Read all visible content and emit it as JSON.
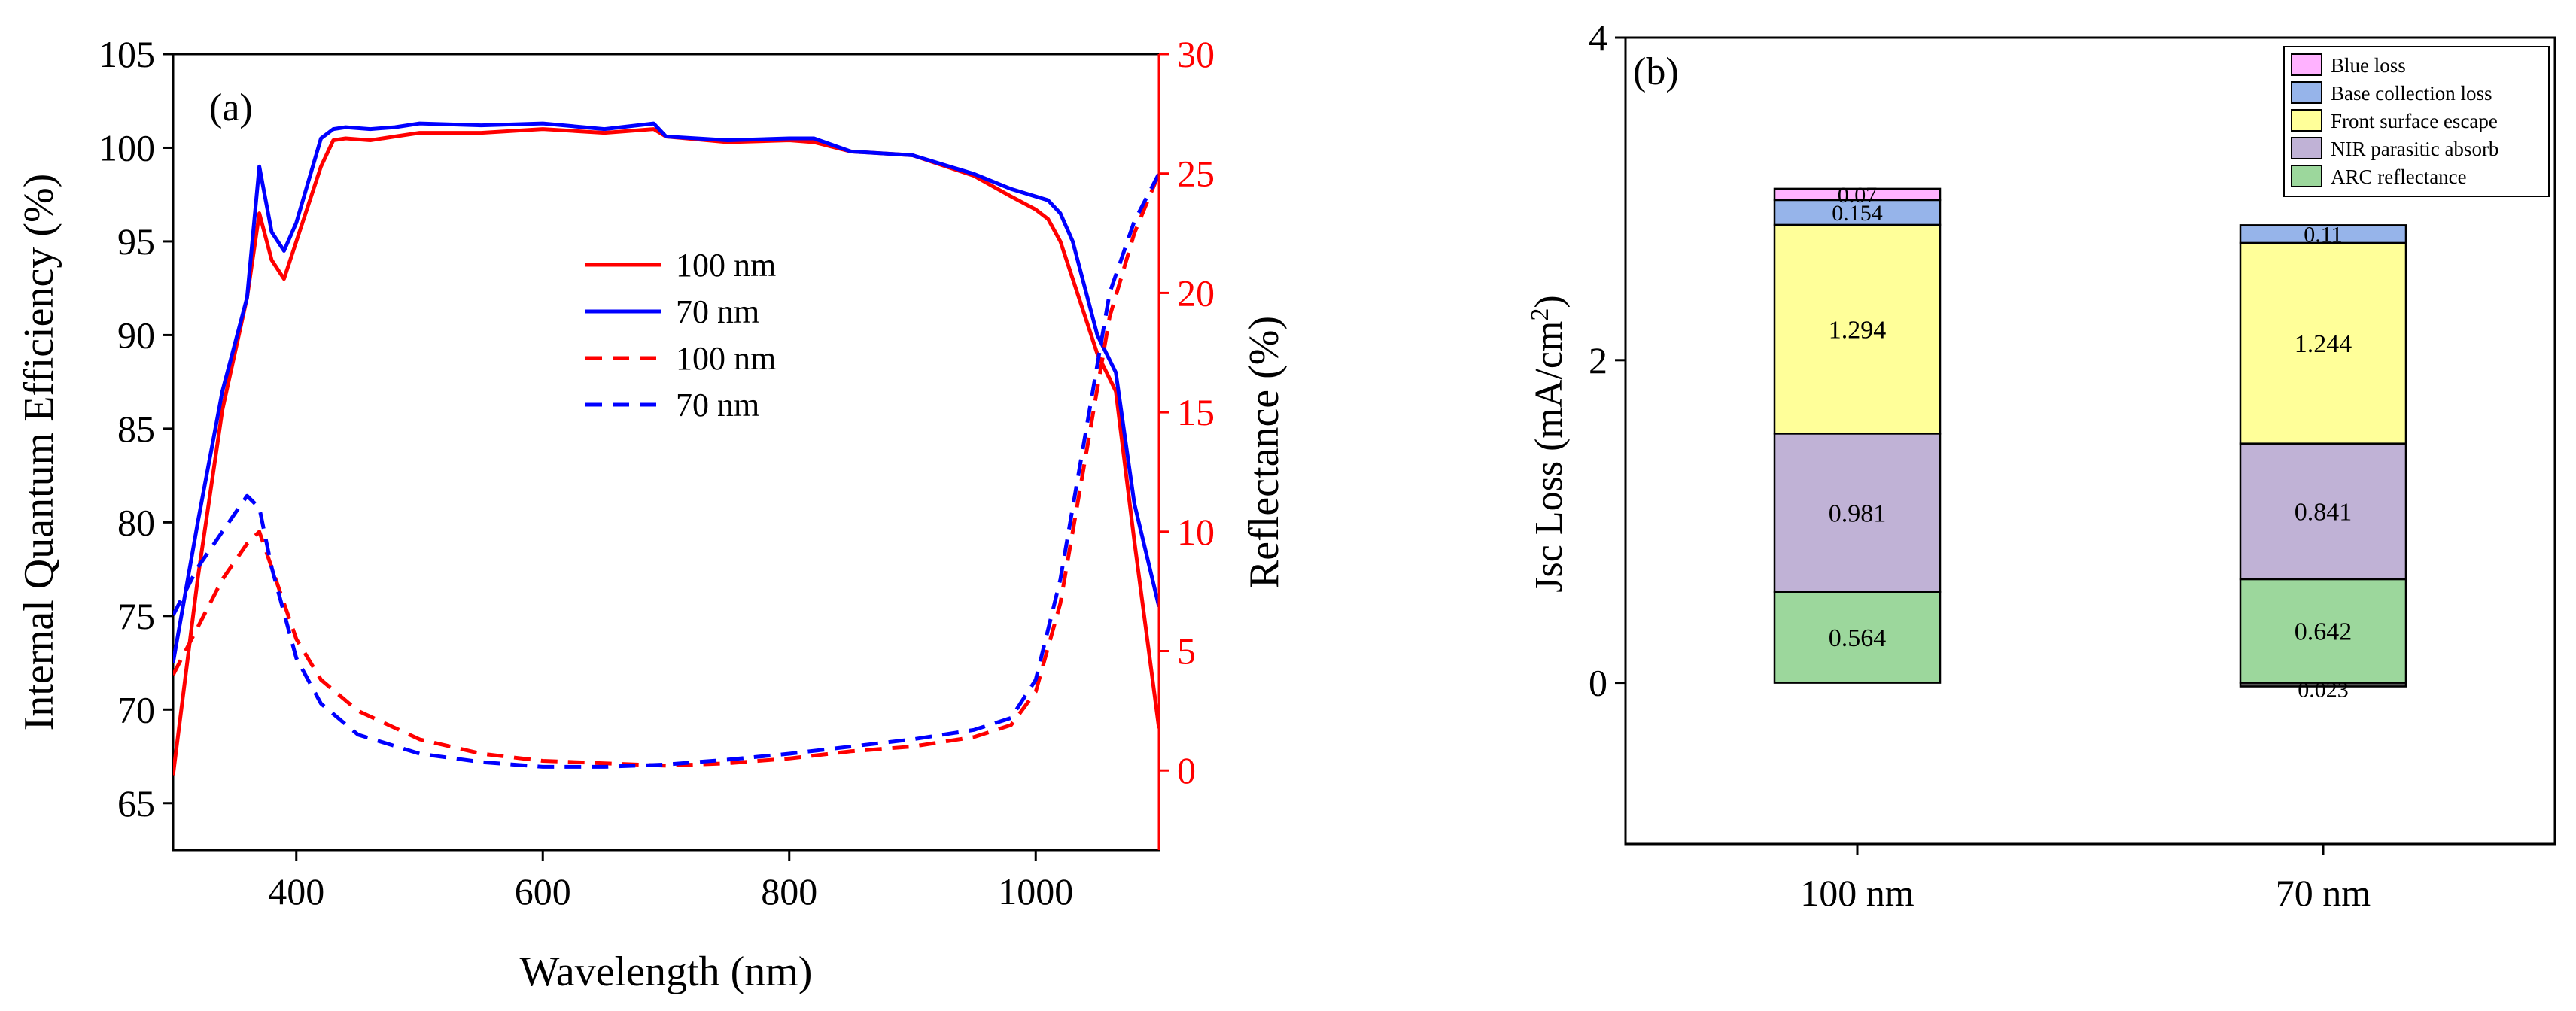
{
  "chart_data": [
    {
      "type": "line",
      "panel_label": "(a)",
      "xlabel": "Wavelength (nm)",
      "ylabel_left": "Internal Quantum Efficiency (%)",
      "ylabel_right": "Reflectance (%)",
      "xlim": [
        300,
        1100
      ],
      "ylim_left": [
        62.5,
        105
      ],
      "ylim_right": [
        -3.333,
        30
      ],
      "xticks": [
        400,
        600,
        800,
        1000
      ],
      "yticks_left": [
        65,
        70,
        75,
        80,
        85,
        90,
        95,
        100,
        105
      ],
      "yticks_right": [
        0,
        5,
        10,
        15,
        20,
        25,
        30
      ],
      "right_axis_color": "#ff0000",
      "legend_position": "center",
      "series": [
        {
          "name": "100 nm",
          "axis": "left",
          "color": "#ff0000",
          "dash": "solid",
          "x": [
            300,
            320,
            340,
            360,
            370,
            380,
            390,
            400,
            420,
            430,
            440,
            460,
            480,
            500,
            550,
            600,
            650,
            690,
            700,
            750,
            800,
            820,
            850,
            900,
            950,
            980,
            1000,
            1010,
            1020,
            1030,
            1050,
            1065,
            1080,
            1100
          ],
          "y": [
            66.5,
            77,
            86,
            92,
            96.5,
            94,
            93,
            95,
            99,
            100.4,
            100.5,
            100.4,
            100.6,
            100.8,
            100.8,
            101,
            100.8,
            101,
            100.6,
            100.3,
            100.4,
            100.3,
            99.8,
            99.6,
            98.5,
            97.4,
            96.7,
            96.2,
            95.0,
            93.0,
            89.0,
            87.0,
            79.0,
            69.0
          ]
        },
        {
          "name": "70 nm",
          "axis": "left",
          "color": "#0000ff",
          "dash": "solid",
          "x": [
            300,
            320,
            340,
            360,
            370,
            380,
            390,
            400,
            420,
            430,
            440,
            460,
            480,
            500,
            550,
            600,
            650,
            690,
            700,
            750,
            800,
            820,
            850,
            900,
            950,
            980,
            1000,
            1010,
            1020,
            1030,
            1050,
            1065,
            1080,
            1100
          ],
          "y": [
            72.5,
            80,
            87,
            92,
            99,
            95.5,
            94.5,
            96,
            100.5,
            101,
            101.1,
            101,
            101.1,
            101.3,
            101.2,
            101.3,
            101,
            101.3,
            100.6,
            100.4,
            100.5,
            100.5,
            99.8,
            99.6,
            98.6,
            97.8,
            97.4,
            97.2,
            96.5,
            95.0,
            90.0,
            88.0,
            81.0,
            75.5
          ]
        },
        {
          "name": "100 nm",
          "axis": "right",
          "color": "#ff0000",
          "dash": "dashed",
          "x": [
            300,
            320,
            340,
            360,
            370,
            380,
            400,
            420,
            450,
            500,
            550,
            600,
            650,
            700,
            750,
            800,
            850,
            900,
            950,
            980,
            1000,
            1020,
            1040,
            1060,
            1080,
            1100
          ],
          "y": [
            4.0,
            6.0,
            8.0,
            9.5,
            10.0,
            8.5,
            5.5,
            3.8,
            2.5,
            1.3,
            0.7,
            0.4,
            0.3,
            0.2,
            0.3,
            0.5,
            0.8,
            1.0,
            1.4,
            1.9,
            3.3,
            7.0,
            13.0,
            19.0,
            22.5,
            25.0
          ]
        },
        {
          "name": "70 nm",
          "axis": "right",
          "color": "#0000ff",
          "dash": "dashed",
          "x": [
            300,
            320,
            340,
            360,
            370,
            380,
            400,
            420,
            450,
            500,
            550,
            600,
            650,
            700,
            750,
            800,
            850,
            900,
            950,
            980,
            1000,
            1020,
            1040,
            1060,
            1080,
            1100
          ],
          "y": [
            6.5,
            8.5,
            10.0,
            11.5,
            11.0,
            8.5,
            4.7,
            2.8,
            1.5,
            0.7,
            0.35,
            0.15,
            0.15,
            0.25,
            0.45,
            0.7,
            1.0,
            1.3,
            1.7,
            2.2,
            3.8,
            8.0,
            14.0,
            20.0,
            23.0,
            25.0
          ]
        }
      ]
    },
    {
      "type": "bar",
      "stacked": true,
      "panel_label": "(b)",
      "ylabel_prefix": "Jsc Loss (mA/cm",
      "ylabel_sup": "2",
      "ylabel_suffix": ")",
      "ylim": [
        -1,
        4
      ],
      "yticks": [
        0,
        2,
        4
      ],
      "categories": [
        "100 nm",
        "70 nm"
      ],
      "legend_position": "top-right",
      "series": [
        {
          "name": "ARC reflectance",
          "color": "#9cd79c",
          "values": [
            0.564,
            0.642
          ],
          "labels": [
            "0.564",
            "0.642"
          ]
        },
        {
          "name": "NIR parasitic absorb",
          "color": "#c0b2d6",
          "values": [
            0.981,
            0.841
          ],
          "labels": [
            "0.981",
            "0.841"
          ]
        },
        {
          "name": "Front surface escape",
          "color": "#ffff99",
          "values": [
            1.294,
            1.244
          ],
          "labels": [
            "1.294",
            "1.244"
          ]
        },
        {
          "name": "Base collection loss",
          "color": "#96b4ea",
          "values": [
            0.154,
            0.11
          ],
          "labels": [
            "0.154",
            "0.11"
          ]
        },
        {
          "name": "Blue loss",
          "color": "#ffb2ff",
          "values": [
            0.07,
            0
          ],
          "labels": [
            "0.07",
            ""
          ]
        }
      ],
      "negative_bar": {
        "category": "70 nm",
        "value": -0.023,
        "label": "0.023"
      }
    }
  ]
}
